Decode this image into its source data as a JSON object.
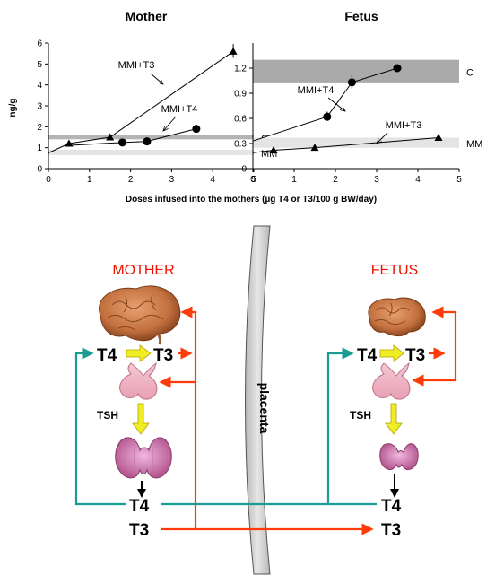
{
  "chart_data": [
    {
      "type": "line",
      "title": "Mother",
      "ylabel": "ng/g",
      "xlim": [
        0,
        5
      ],
      "ylim": [
        0,
        6
      ],
      "xticks": [
        "0",
        "1",
        "2",
        "3",
        "4",
        "5"
      ],
      "yticks": [
        "0",
        "1",
        "2",
        "3",
        "4",
        "5",
        "6"
      ],
      "bands": [
        {
          "label": "C",
          "range": [
            1.4,
            1.6
          ],
          "color": "#b4b4b4"
        },
        {
          "label": "MM",
          "range": [
            0.65,
            0.9
          ],
          "color": "#e4e4e4"
        }
      ],
      "series": [
        {
          "name": "MMI+T3",
          "marker": "triangle",
          "x": [
            0.5,
            1.5,
            4.5
          ],
          "y": [
            1.2,
            1.5,
            5.6
          ]
        },
        {
          "name": "MMI+T4",
          "marker": "circle",
          "x": [
            1.8,
            2.4,
            3.6
          ],
          "y": [
            1.25,
            1.3,
            1.9
          ]
        }
      ],
      "baseline": {
        "x": 0,
        "y": 0.75
      }
    },
    {
      "type": "line",
      "title": "Fetus",
      "xlim": [
        0,
        5
      ],
      "ylim": [
        0,
        1.5
      ],
      "xticks": [
        "0",
        "1",
        "2",
        "3",
        "4",
        "5"
      ],
      "yticks": [
        "0",
        "0.3",
        "0.6",
        "0.9",
        "1.2"
      ],
      "bands": [
        {
          "label": "C",
          "range": [
            1.03,
            1.3
          ],
          "color": "#aaaaaa"
        },
        {
          "label": "MM",
          "range": [
            0.25,
            0.37
          ],
          "color": "#e4e4e4"
        }
      ],
      "series": [
        {
          "name": "MMI+T4",
          "marker": "circle",
          "x": [
            1.8,
            2.4,
            3.5
          ],
          "y": [
            0.62,
            1.03,
            1.2
          ]
        },
        {
          "name": "MMI+T3",
          "marker": "triangle",
          "x": [
            0.5,
            1.5,
            4.5
          ],
          "y": [
            0.22,
            0.25,
            0.37
          ]
        }
      ],
      "baseline_t4": {
        "x": 0,
        "y": 0.33
      },
      "baseline_t3": {
        "x": 0,
        "y": 0.19
      }
    }
  ],
  "xlabel": "Doses infused into the mothers (µg T4 or T3/100 g BW/day)",
  "diagram": {
    "mother_label": "MOTHER",
    "fetus_label": "FETUS",
    "placenta_label": "placenta",
    "t4": "T4",
    "t3": "T3",
    "tsh": "TSH",
    "colors": {
      "teal": "#1a9c94",
      "red": "#ff3b0a",
      "yellow": "#eeee22",
      "arrow_dark": "#000000"
    }
  }
}
